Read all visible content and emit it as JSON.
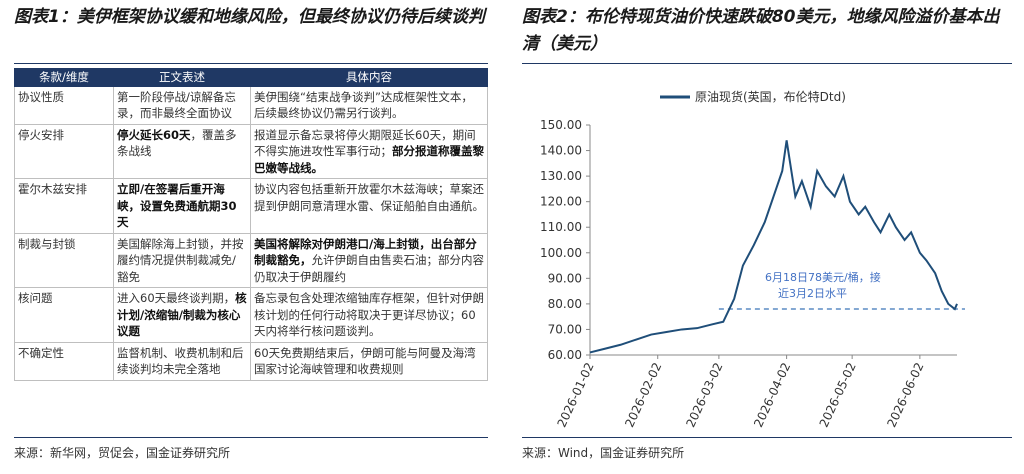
{
  "left_panel": {
    "title": "图表1：美伊框架协议缓和地缘风险，但最终协议仍待后续谈判",
    "table": {
      "header": [
        "条款/维度",
        "正文表述",
        "具体内容"
      ],
      "rows": [
        [
          [
            {
              "text": "协议性质"
            }
          ],
          [
            {
              "text": "第一阶段停战/谅解备忘录，而非最终全面协议"
            }
          ],
          [
            {
              "text": "美伊围绕“结束战争谈判”达成框架性文本，后续最终协议仍需另行谈判。"
            }
          ]
        ],
        [
          [
            {
              "text": "停火安排"
            }
          ],
          [
            {
              "text": "停火延长60天",
              "bold": true
            },
            {
              "text": "，覆盖多条战线"
            }
          ],
          [
            {
              "text": "报道显示备忘录将停火期限延长60天，期间不得实施进攻性军事行动；"
            },
            {
              "text": "部分报道称覆盖黎巴嫩等战线。",
              "bold": true
            }
          ]
        ],
        [
          [
            {
              "text": "霍尔木兹安排"
            }
          ],
          [
            {
              "text": "立即/在签署后重开海峡，设置免费通航期30天",
              "bold": true
            }
          ],
          [
            {
              "text": "协议内容包括重新开放霍尔木兹海峡；草案还提到伊朗同意清理水雷、保证船舶自由通航。"
            }
          ]
        ],
        [
          [
            {
              "text": "制裁与封锁"
            }
          ],
          [
            {
              "text": "美国解除海上封锁，并按履约情况提供制裁减免/豁免"
            }
          ],
          [
            {
              "text": "美国将解除对伊朗港口/海上封锁，出台部分制裁豁免，",
              "bold": true
            },
            {
              "text": "允许伊朗自由售卖石油；部分内容仍取决于伊朗履约"
            }
          ]
        ],
        [
          [
            {
              "text": "核问题"
            }
          ],
          [
            {
              "text": "进入60天最终谈判期，"
            },
            {
              "text": "核计划/浓缩铀/制裁为核心议题",
              "bold": true
            }
          ],
          [
            {
              "text": "备忘录包含处理浓缩铀库存框架，但针对伊朗核计划的任何行动将取决于更详尽协议；60天内将举行核问题谈判。"
            }
          ]
        ],
        [
          [
            {
              "text": "不确定性"
            }
          ],
          [
            {
              "text": "监督机制、收费机制和后续谈判均未完全落地"
            }
          ],
          [
            {
              "text": "60天免费期结束后，伊朗可能与阿曼及海湾国家讨论海峡管理和收费规则"
            }
          ]
        ]
      ]
    },
    "source": "来源：新华网，贸促会，国金证券研究所"
  },
  "right_panel": {
    "title": "图表2：布伦特现货油价快速跌破80美元，地缘风险溢价基本出清（美元）",
    "source": "来源：Wind，国金证券研究所"
  },
  "chart_data": {
    "type": "line",
    "x": [
      "2026-01-02",
      "2026-01-09",
      "2026-01-16",
      "2026-01-23",
      "2026-01-30",
      "2026-02-06",
      "2026-02-13",
      "2026-02-20",
      "2026-02-27",
      "2026-03-04",
      "2026-03-09",
      "2026-03-13",
      "2026-03-18",
      "2026-03-23",
      "2026-03-27",
      "2026-03-31",
      "2026-04-02",
      "2026-04-06",
      "2026-04-09",
      "2026-04-13",
      "2026-04-16",
      "2026-04-20",
      "2026-04-24",
      "2026-04-28",
      "2026-05-01",
      "2026-05-05",
      "2026-05-08",
      "2026-05-12",
      "2026-05-15",
      "2026-05-19",
      "2026-05-22",
      "2026-05-26",
      "2026-05-29",
      "2026-06-02",
      "2026-06-05",
      "2026-06-09",
      "2026-06-12",
      "2026-06-15",
      "2026-06-18",
      "2026-06-19"
    ],
    "series": [
      {
        "name": "原油现货(英国，布伦特Dtd)",
        "color": "#1f4e79",
        "values": [
          61,
          62.5,
          64,
          66,
          68,
          69,
          70,
          70.5,
          72,
          73,
          82,
          95,
          103,
          112,
          122,
          132,
          144,
          122,
          128,
          118,
          132,
          126,
          122,
          130,
          120,
          115,
          118,
          112,
          108,
          115,
          110,
          105,
          108,
          100,
          97,
          92,
          85,
          80,
          78,
          80
        ]
      }
    ],
    "xlim": [
      "2026-01-02",
      "2026-06-19"
    ],
    "xticks": [
      "2026-01-02",
      "2026-02-02",
      "2026-03-02",
      "2026-04-02",
      "2026-05-02",
      "2026-06-02"
    ],
    "ylim": [
      60,
      150
    ],
    "yticks": [
      {
        "value": 60,
        "label": "60.00"
      },
      {
        "value": 70,
        "label": "70.00"
      },
      {
        "value": 80,
        "label": "80.00"
      },
      {
        "value": 90,
        "label": "90.00"
      },
      {
        "value": 100,
        "label": "100.00"
      },
      {
        "value": 110,
        "label": "110.00"
      },
      {
        "value": 120,
        "label": "120.00"
      },
      {
        "value": 130,
        "label": "130.00"
      },
      {
        "value": 140,
        "label": "140.00"
      },
      {
        "value": 150,
        "label": "150.00"
      }
    ],
    "reference_line": {
      "value": 78,
      "start": "2026-03-02",
      "color": "#5b8bc4"
    },
    "annotation": [
      "6月18日78美元/桶，接",
      "近3月2日水平"
    ]
  }
}
